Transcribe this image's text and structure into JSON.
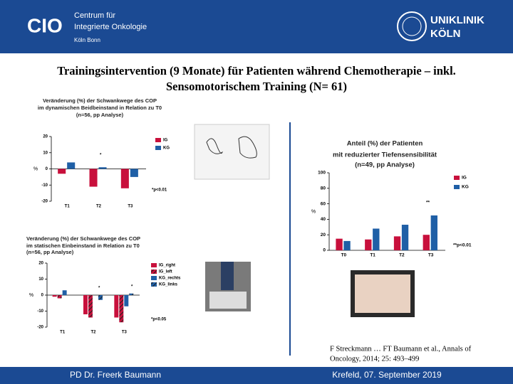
{
  "header": {
    "logo": "CIO",
    "org_line1": "Centrum für",
    "org_line2": "Integrierte Onkologie",
    "org_line3": "Köln Bonn",
    "clinic_line1": "UNIKLINIK",
    "clinic_line2": "KÖLN"
  },
  "slide_title": [
    "Trainingsintervention (9 Monate) für Patienten während Chemotherapie – inkl.",
    "Sensomotorischem Training (N= 61)"
  ],
  "citation": [
    "F Streckmann … FT Baumann et al., Annals of",
    "Oncology, 2014; 25: 493–499"
  ],
  "footer": {
    "left": "PD Dr. Freerk Baumann",
    "right": "Krefeld, 07. September 2019"
  },
  "chart_data": [
    {
      "type": "bar",
      "title_lines": [
        "Veränderung (%) der Schwankwege des COP",
        "im dynamischen Beidbeinstand in Relation zu T0",
        "(n=56, pp Analyse)"
      ],
      "y_label": "%",
      "categories": [
        "T1",
        "T2",
        "T3"
      ],
      "series": [
        {
          "name": "IG",
          "color": "#c8103c",
          "values": [
            -3,
            -11,
            -12
          ]
        },
        {
          "name": "KG",
          "color": "#1f5fa6",
          "values": [
            4,
            1,
            -5
          ]
        }
      ],
      "ylim": [
        -20,
        20
      ],
      "yticks": [
        -20,
        -10,
        0,
        10,
        20
      ],
      "annotations": [
        "*",
        "*p<0.01"
      ]
    },
    {
      "type": "bar",
      "title_lines": [
        "Veränderung (%) der Schwankwege des COP",
        "im statischen Einbeinstand in Relation zu T0",
        "(n=56, pp Analyse)"
      ],
      "y_label": "%",
      "categories": [
        "T1",
        "T2",
        "T3"
      ],
      "series": [
        {
          "name": "IG_right",
          "color": "#c8103c",
          "values": [
            -1,
            -12,
            -14
          ]
        },
        {
          "name": "IG_left",
          "color": "#c8103c",
          "pattern": "hatch",
          "values": [
            -2,
            -14,
            -17
          ]
        },
        {
          "name": "KG_rechts",
          "color": "#1f5fa6",
          "values": [
            3,
            0,
            -7
          ]
        },
        {
          "name": "KG_links",
          "color": "#1f5fa6",
          "pattern": "hatch",
          "values": [
            0,
            -3,
            1
          ]
        }
      ],
      "ylim": [
        -20,
        20
      ],
      "yticks": [
        -20,
        -10,
        0,
        10,
        20
      ],
      "annotations": [
        "*",
        "*",
        "*p<0.05"
      ]
    },
    {
      "type": "bar",
      "title_lines": [
        "Anteil (%) der Patienten",
        "mit reduzierter Tiefensensibilität",
        "(n=49, pp Analyse)"
      ],
      "y_label": "%",
      "categories": [
        "T0",
        "T1",
        "T2",
        "T3"
      ],
      "series": [
        {
          "name": "IG",
          "color": "#c8103c",
          "values": [
            15,
            14,
            18,
            20
          ]
        },
        {
          "name": "KG",
          "color": "#1f5fa6",
          "values": [
            12,
            28,
            33,
            45
          ]
        }
      ],
      "ylim": [
        0,
        100
      ],
      "yticks": [
        0,
        20,
        40,
        60,
        80,
        100
      ],
      "annotations": [
        "**",
        "**p<0.01"
      ]
    }
  ]
}
